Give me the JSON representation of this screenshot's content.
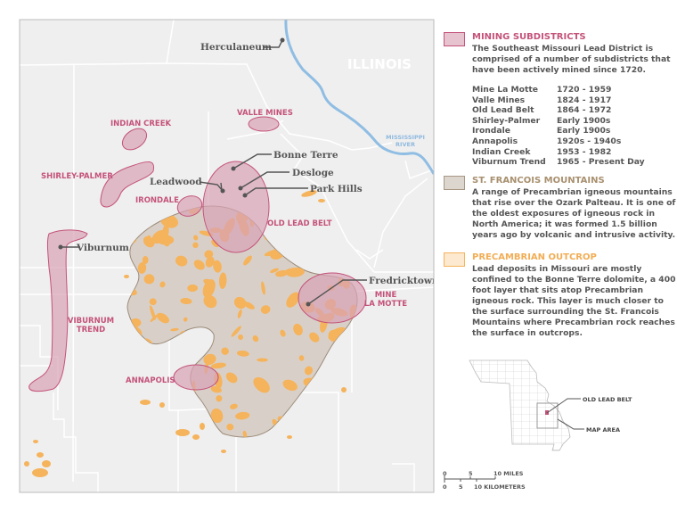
{
  "colors": {
    "subdistrict_fill": "#d9a3b5",
    "subdistrict_stroke": "#c4527a",
    "mountains_fill": "#d8d0c8",
    "mountains_stroke": "#9c8b7a",
    "outcrop_fill": "#f5b35c",
    "river": "#8fbde3",
    "map_bg": "#efefef"
  },
  "map": {
    "state_label": "ILLINOIS",
    "river_label": [
      "MISSISSIPPI",
      "RIVER"
    ],
    "towns": {
      "herculaneum": "Herculaneum",
      "bonne_terre": "Bonne Terre",
      "desloge": "Desloge",
      "park_hills": "Park Hills",
      "leadwood": "Leadwood",
      "viburnum": "Viburnum",
      "fredricktown": "Fredricktown"
    },
    "districts": {
      "valle_mines": "VALLE MINES",
      "indian_creek": "INDIAN CREEK",
      "shirley_palmer": "SHIRLEY-PALMER",
      "irondale": "IRONDALE",
      "old_lead_belt": "OLD LEAD BELT",
      "viburnum_trend": [
        "VIBURNUM",
        "TREND"
      ],
      "mine_la_motte": [
        "MINE",
        "LA MOTTE"
      ],
      "annapolis": "ANNAPOLIS"
    }
  },
  "legend": {
    "mining": {
      "title": "MINING SUBDISTRICTS",
      "body": "The Southeast Missouri Lead District is comprised of a number of subdistricts that have been actively mined since 1720.",
      "rows": [
        {
          "name": "Mine La Motte",
          "years": "1720 - 1959"
        },
        {
          "name": "Valle Mines",
          "years": "1824 - 1917"
        },
        {
          "name": "Old Lead Belt",
          "years": "1864 - 1972"
        },
        {
          "name": "Shirley-Palmer",
          "years": "Early 1900s"
        },
        {
          "name": "Irondale",
          "years": "Early 1900s"
        },
        {
          "name": "Annapolis",
          "years": "1920s - 1940s"
        },
        {
          "name": "Indian Creek",
          "years": "1953 - 1982"
        },
        {
          "name": "Viburnum Trend",
          "years": "1965 - Present Day"
        }
      ]
    },
    "mountains": {
      "title": "ST. FRANCOIS MOUNTAINS",
      "body": "A range of Precambrian igneous mountains that rise over the Ozark Palteau. It is one of the oldest exposures of igneous rock in North America; it was formed 1.5 billion years ago by volcanic and intrusive activity."
    },
    "outcrop": {
      "title": "PRECAMBRIAN OUTCROP",
      "body": "Lead deposits in Missouri are mostly confined to the Bonne Terre dolomite, a 400 foot layer that sits atop Precambrian igneous rock. This layer is much closer to the surface surrounding the St. Francois Mountains where Precambrian rock reaches the surface in outcrops."
    }
  },
  "inset": {
    "old_lead_belt": "OLD LEAD BELT",
    "map_area": "MAP AREA"
  },
  "scale": {
    "miles": [
      "0",
      "5",
      "10 MILES"
    ],
    "km": [
      "0",
      "5",
      "10 KILOMETERS"
    ]
  }
}
